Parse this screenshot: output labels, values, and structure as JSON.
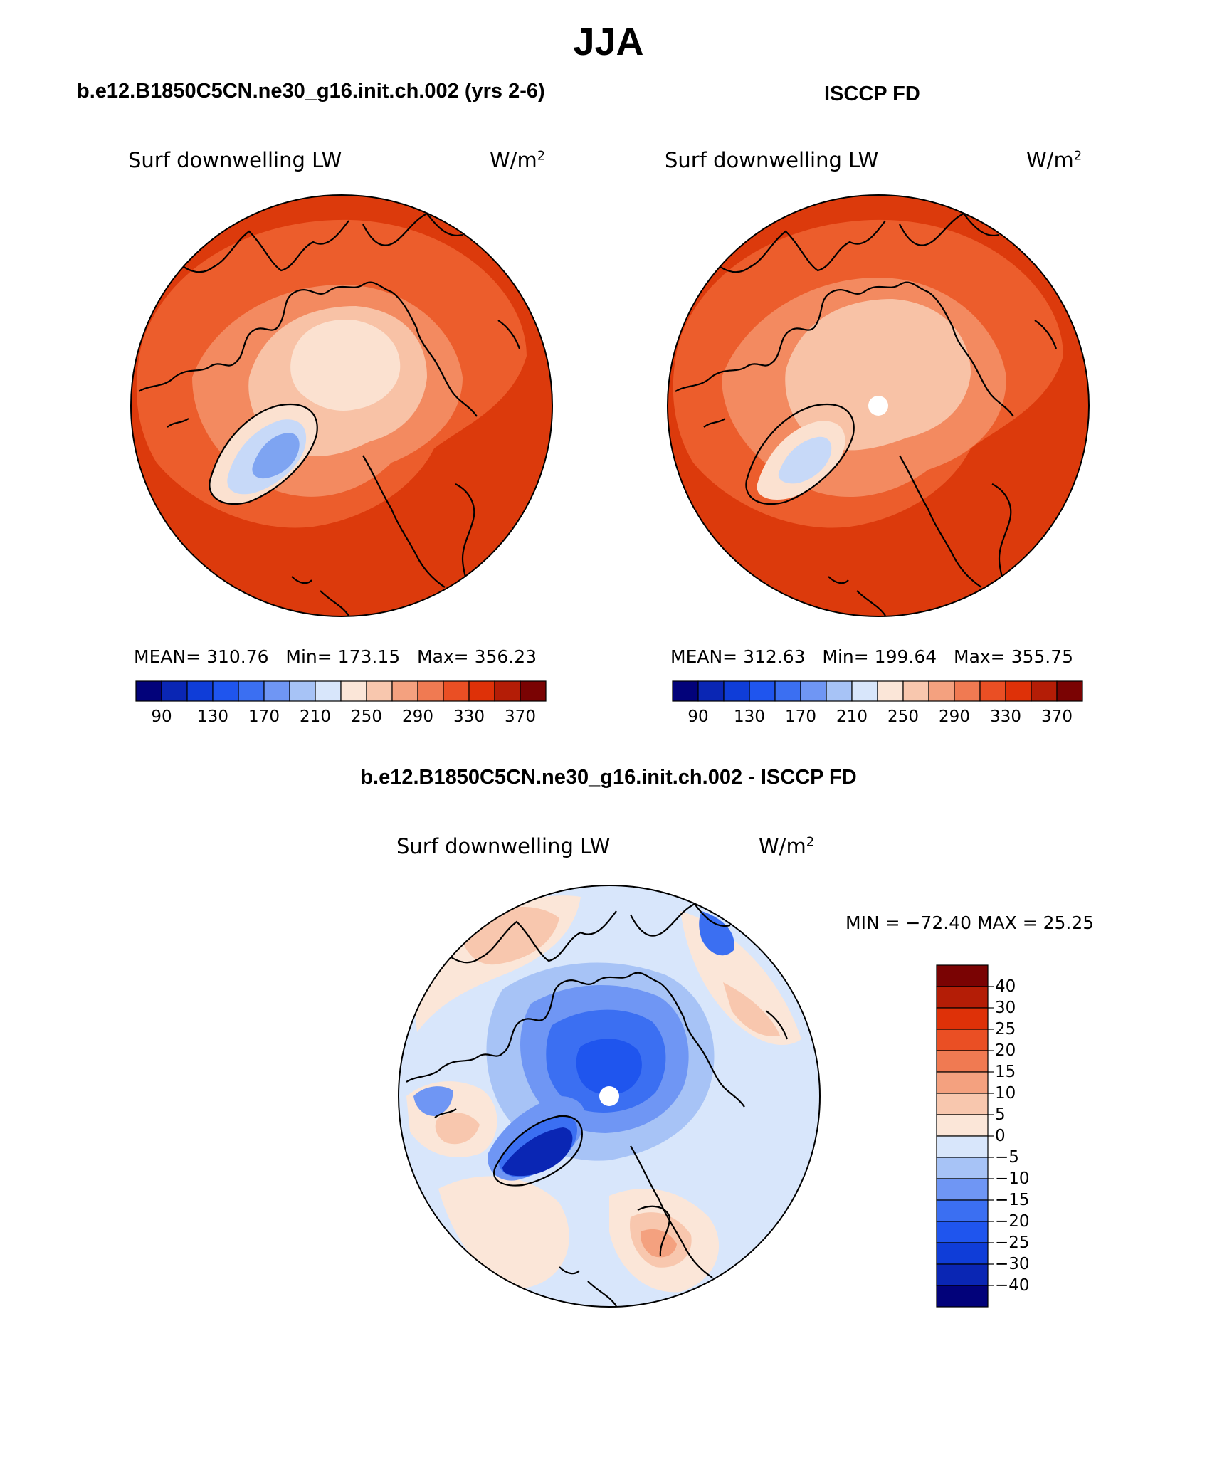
{
  "title": "JJA",
  "panels": {
    "model": {
      "title": "b.e12.B1850C5CN.ne30_g16.init.ch.002 (yrs 2-6)",
      "variable": "Surf downwelling LW",
      "units_base": "W/m",
      "units_exp": "2",
      "stats": {
        "mean_label": "MEAN=",
        "mean": "310.76",
        "min_label": "Min=",
        "min": "173.15",
        "max_label": "Max=",
        "max": "356.23"
      }
    },
    "obs": {
      "title": "ISCCP FD",
      "variable": "Surf downwelling LW",
      "units_base": "W/m",
      "units_exp": "2",
      "stats": {
        "mean_label": "MEAN=",
        "mean": "312.63",
        "min_label": "Min=",
        "min": "199.64",
        "max_label": "Max=",
        "max": "355.75"
      }
    },
    "diff": {
      "title": "b.e12.B1850C5CN.ne30_g16.init.ch.002 - ISCCP FD",
      "variable": "Surf downwelling LW",
      "units_base": "W/m",
      "units_exp": "2",
      "minmax": "MIN = −72.40 MAX =   25.25"
    }
  },
  "colorbar_abs": {
    "colors": [
      "#02027a",
      "#0a26b4",
      "#0f3dd8",
      "#1f55ee",
      "#3b6ff2",
      "#6f96f4",
      "#a7c3f6",
      "#d8e6fb",
      "#fbe6d8",
      "#f8c7ae",
      "#f4a17f",
      "#f07a52",
      "#ea4f24",
      "#de3108",
      "#b41d06",
      "#7a0303"
    ],
    "labels": [
      "90",
      "130",
      "170",
      "210",
      "250",
      "290",
      "330",
      "370"
    ]
  },
  "colorbar_diff": {
    "colors": [
      "#7a0303",
      "#b41d06",
      "#de3108",
      "#ea4f24",
      "#f07a52",
      "#f4a17f",
      "#f8c7ae",
      "#fbe6d8",
      "#d8e6fb",
      "#a7c3f6",
      "#6f96f4",
      "#3b6ff2",
      "#1f55ee",
      "#0f3dd8",
      "#0a26b4",
      "#02027a"
    ],
    "labels": [
      "40",
      "30",
      "25",
      "20",
      "15",
      "10",
      "5",
      "0",
      "−5",
      "−10",
      "−15",
      "−20",
      "−25",
      "−30",
      "−40"
    ]
  },
  "map_colors": {
    "abs_high": "#dc3a0c",
    "abs_mid": "#ec5d2c",
    "abs_warm": "#f38a60",
    "abs_light": "#f8c2a6",
    "abs_pale": "#fbe1d0",
    "abs_ice_light": "#c7d9f8",
    "abs_ice_blue": "#7ea4f2",
    "diff_bg": "#d8e6fb",
    "diff_pos1": "#fbe6d8",
    "diff_pos2": "#f8c7ae",
    "diff_pos3": "#f4a17f",
    "diff_neg1": "#a7c3f6",
    "diff_neg2": "#6f96f4",
    "diff_neg3": "#3b6ff2",
    "diff_neg4": "#1f55ee",
    "diff_neg5": "#0a26b4"
  }
}
